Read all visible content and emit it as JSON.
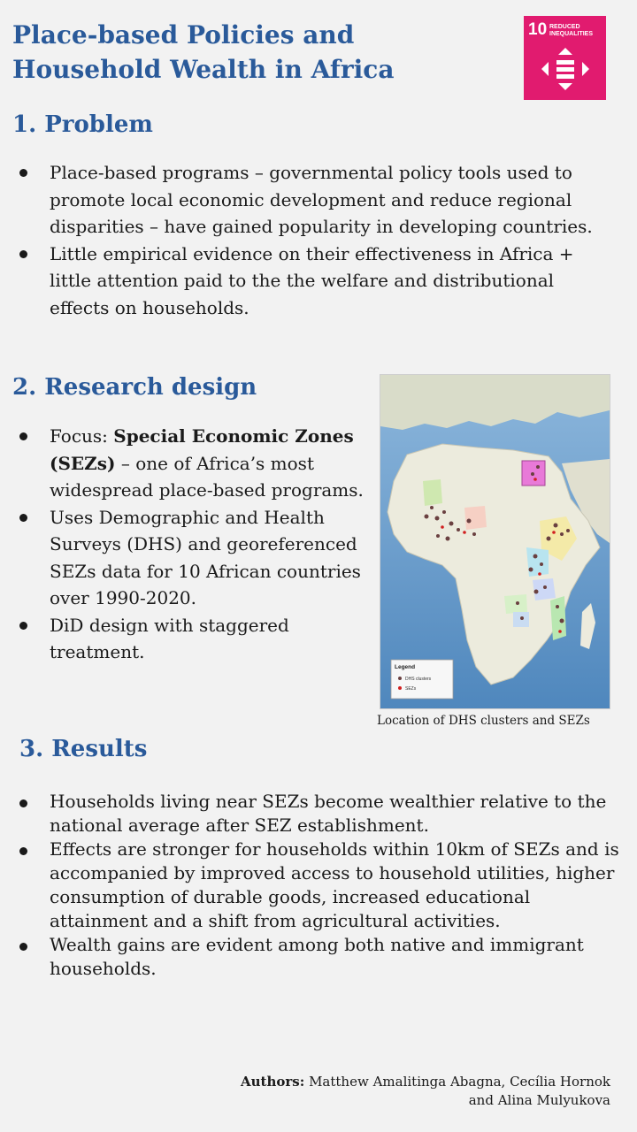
{
  "title": "Place-based Policies and Household Wealth in Africa",
  "sdg_badge": {
    "number": "10",
    "label": "REDUCED INEQUALITIES",
    "color": "#e11b6f",
    "icon": "reduced-inequalities-icon"
  },
  "sections": {
    "problem": {
      "heading": "1. Problem",
      "bullets": [
        "Place-based programs – governmental policy tools used to promote local economic development and reduce regional disparities – have gained popularity in developing countries.",
        "Little empirical evidence on their effectiveness in Africa + little attention paid to the the welfare and distributional effects on households."
      ]
    },
    "research_design": {
      "heading": "2. Research design",
      "bullet1_prefix": "Focus: ",
      "bullet1_bold": "Special Economic Zones (SEZs)",
      "bullet1_suffix": " – one of Africa’s most widespread place-based programs.",
      "bullet2": "Uses Demographic and Health Surveys (DHS) and georeferenced SEZs data for 10 African countries over 1990-2020.",
      "bullet3": "DiD design with staggered treatment."
    },
    "results": {
      "heading": "3. Results",
      "bullets": [
        "Households living near SEZs become wealthier relative to the national average after SEZ establishment.",
        "Effects are stronger for households within 10km of SEZs and is accompanied by improved access to household utilities, higher consumption of durable goods, increased educational attainment and a shift from agricultural activities.",
        "Wealth gains are evident among both native and immigrant households."
      ]
    }
  },
  "map": {
    "caption": "Location of DHS clusters and SEZs",
    "legend_title": "Legend",
    "legend_items": [
      "DHS clusters",
      "SEZs"
    ]
  },
  "authors": {
    "label": "Authors:",
    "names": " Matthew Amalitinga Abagna, Cecília Hornok and Alina Mulyukova"
  }
}
